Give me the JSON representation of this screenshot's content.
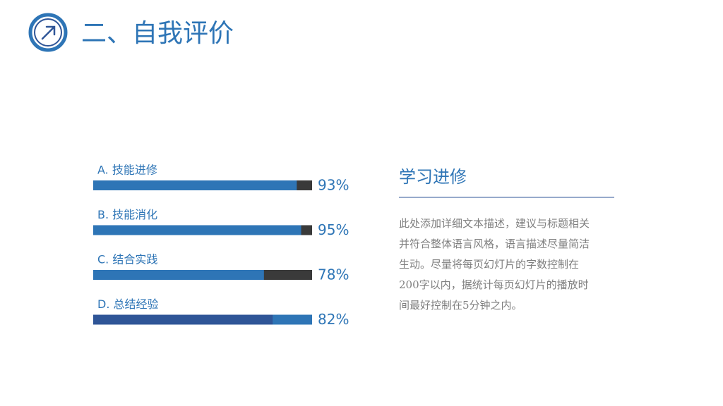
{
  "header": {
    "title": "二、自我评价"
  },
  "chart_data": {
    "type": "bar",
    "orientation": "horizontal",
    "categories": [
      "A. 技能进修",
      "B. 技能消化",
      "C. 结合实践",
      "D. 总结经验"
    ],
    "values": [
      93,
      95,
      78,
      82
    ],
    "value_labels": [
      "93%",
      "95%",
      "78%",
      "82%"
    ],
    "colors": [
      "#2e75b6",
      "#2e75b6",
      "#2e75b6",
      "#2f5597"
    ],
    "track_colors": [
      "#3a3a3a",
      "#3a3a3a",
      "#3a3a3a",
      "#2e75b6"
    ],
    "xlim": [
      0,
      100
    ]
  },
  "side": {
    "heading": "学习进修",
    "paragraph": [
      "此处添加详细文本描述，建议与标题相关",
      "并符合整体语言风格，语言描述尽量简洁",
      "生动。尽量将每页幻灯片的字数控制在",
      "200字以内，据统计每页幻灯片的播放时",
      "间最好控制在5分钟之内。"
    ]
  }
}
